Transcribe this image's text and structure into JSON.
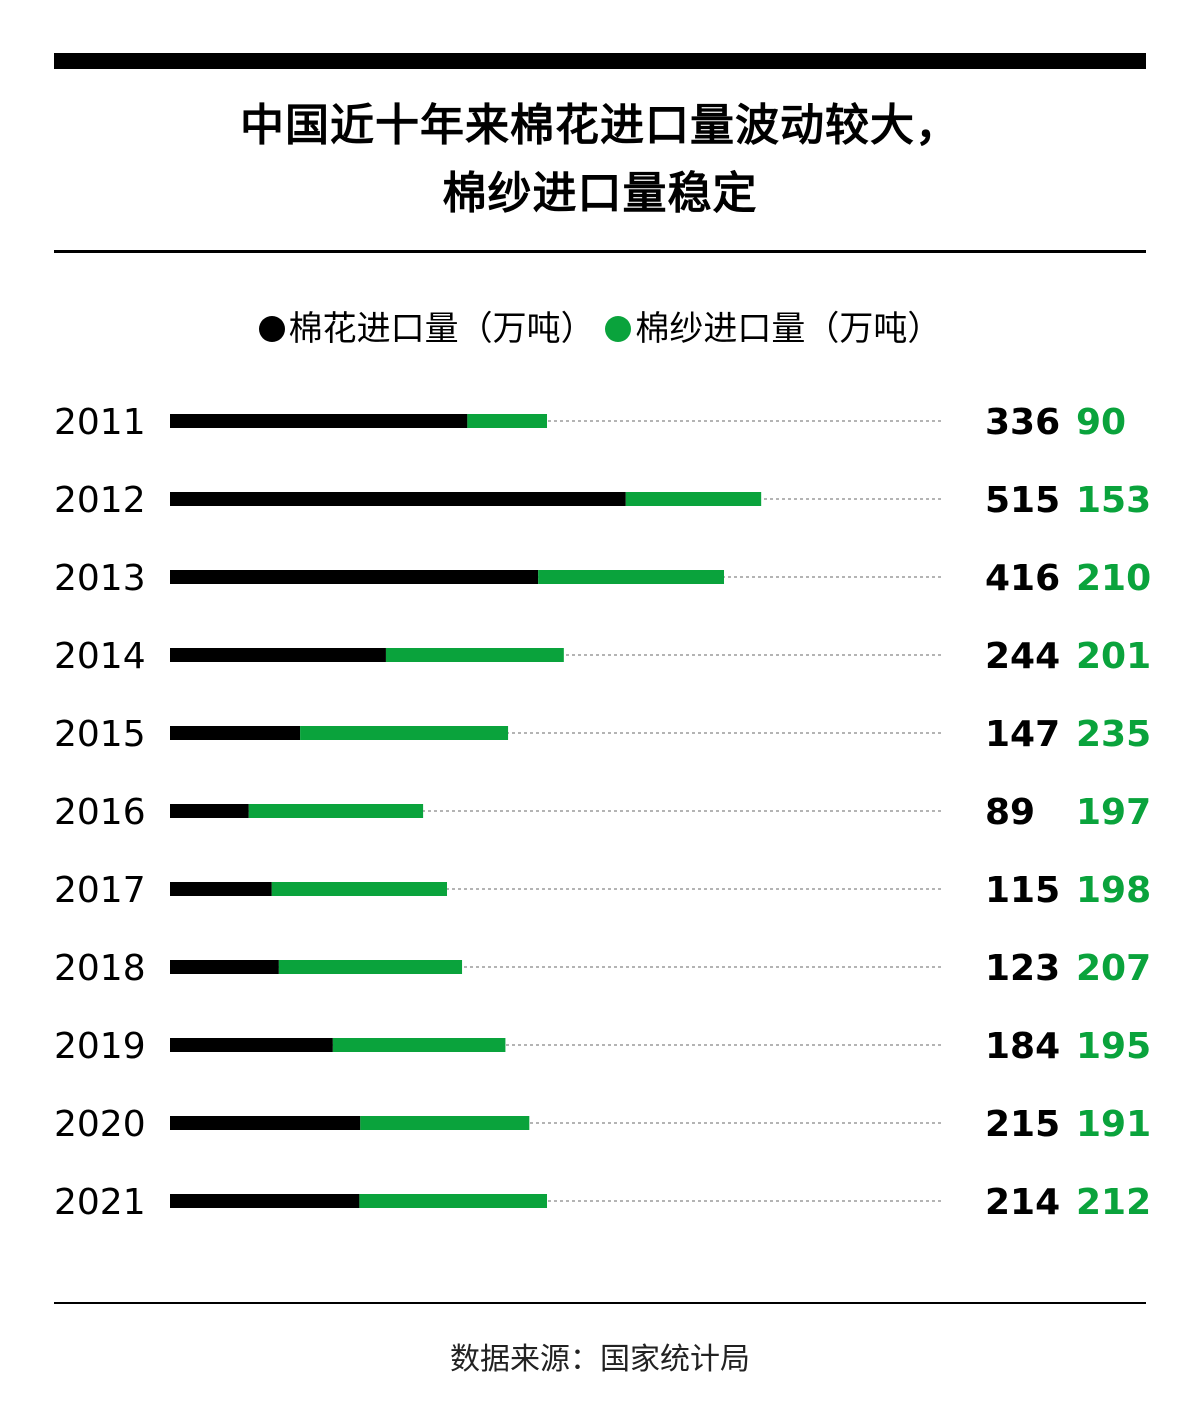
{
  "title_line1": "中国近十年来棉花进口量波动较大，",
  "title_line2": "棉纱进口量稳定",
  "source": "数据来源：国家统计局",
  "colors": {
    "cotton": "#000000",
    "yarn": "#0aa33c",
    "dotted": "#888888"
  },
  "chart_data": {
    "type": "bar",
    "stacked": true,
    "orientation": "horizontal",
    "categories": [
      "2011",
      "2012",
      "2013",
      "2014",
      "2015",
      "2016",
      "2017",
      "2018",
      "2019",
      "2020",
      "2021"
    ],
    "series": [
      {
        "name": "棉花进口量（万吨）",
        "values": [
          336,
          515,
          416,
          244,
          147,
          89,
          115,
          123,
          184,
          215,
          214
        ]
      },
      {
        "name": "棉纱进口量（万吨）",
        "values": [
          90,
          153,
          210,
          201,
          235,
          197,
          198,
          207,
          195,
          191,
          212
        ]
      }
    ],
    "legend_position": "top-center",
    "grid": false
  }
}
